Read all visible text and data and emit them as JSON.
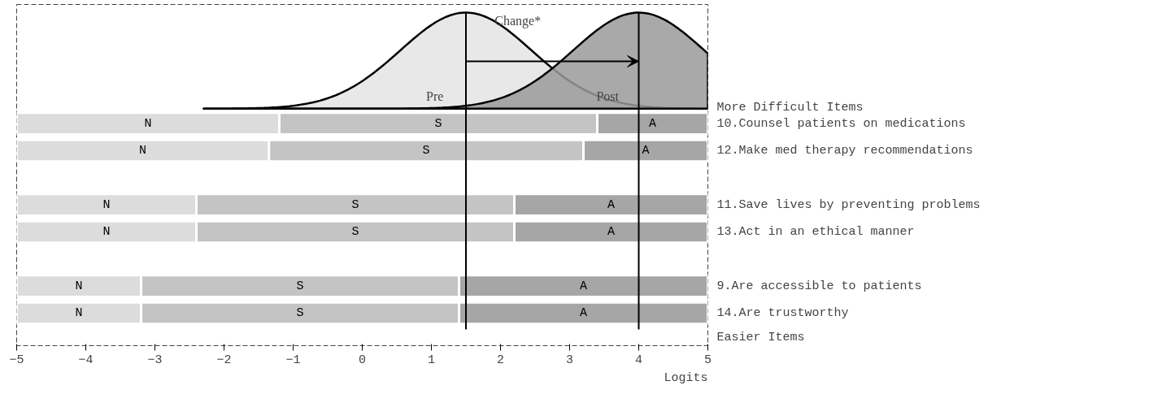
{
  "chart_data": {
    "type": "bar",
    "orientation": "horizontal",
    "categories": [
      "10.Counsel patients on medications",
      "12.Make med therapy recommendations",
      null,
      "11.Save lives by preventing problems",
      "13.Act in an ethical manner",
      null,
      "9.Are accessible to patients",
      "14.Are trustworthy"
    ],
    "series": [
      {
        "name": "N",
        "color": "#dcdcdc",
        "base": [
          -5,
          -5,
          null,
          -5,
          -5,
          null,
          -5,
          -5
        ],
        "values": [
          3.8,
          3.65,
          null,
          2.6,
          2.6,
          null,
          1.8,
          1.8
        ]
      },
      {
        "name": "S",
        "color": "#c4c4c4",
        "base": [
          -1.2,
          -1.35,
          null,
          -2.4,
          -2.4,
          null,
          -3.2,
          -3.2
        ],
        "values": [
          4.6,
          4.55,
          null,
          4.6,
          4.6,
          null,
          4.6,
          4.6
        ]
      },
      {
        "name": "A",
        "color": "#a6a6a6",
        "base": [
          3.4,
          3.2,
          null,
          2.2,
          2.2,
          null,
          1.4,
          1.4
        ],
        "values": [
          1.6,
          1.8,
          null,
          2.8,
          2.8,
          null,
          3.6,
          3.6
        ]
      }
    ],
    "xlim": [
      -5,
      5
    ],
    "xticks": [
      -5,
      -4,
      -3,
      -2,
      -1,
      0,
      1,
      2,
      3,
      4,
      5
    ],
    "xlabel": "Logits",
    "ref_lines": [
      {
        "axis": "x",
        "value": 1.5,
        "label": "Pre",
        "color": "#000000"
      },
      {
        "axis": "x",
        "value": 4,
        "label": "Post",
        "color": "#000000"
      }
    ],
    "annotations": [
      "Change*",
      "More Difficult Items",
      "Easier Items"
    ],
    "grid": false
  }
}
